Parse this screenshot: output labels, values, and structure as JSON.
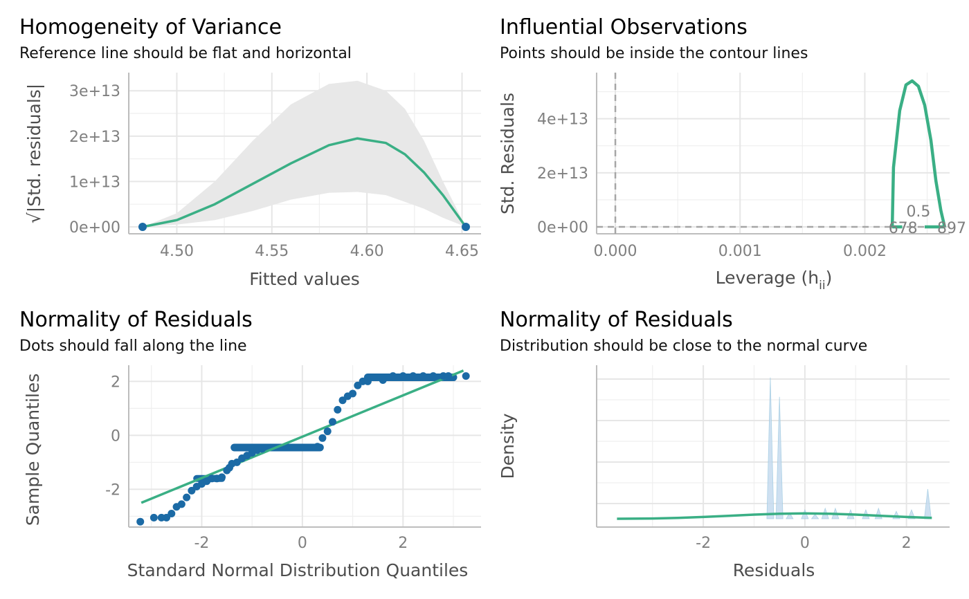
{
  "colors": {
    "green": "#3aaf85",
    "blue": "#1b6aa5",
    "band": "#e8e8e8",
    "density_fill": "#c6dbef"
  },
  "panels": {
    "homogeneity": {
      "title": "Homogeneity of Variance",
      "subtitle": "Reference line should be flat and horizontal",
      "xlabel": "Fitted values",
      "ylabel": "√|Std. residuals|",
      "xticks": [
        "4.50",
        "4.55",
        "4.60",
        "4.65"
      ],
      "yticks": [
        "0e+00",
        "1e+13",
        "2e+13",
        "3e+13"
      ]
    },
    "influential": {
      "title": "Influential Observations",
      "subtitle": "Points should be inside the contour lines",
      "xlabel": "Leverage (h",
      "xlabel_sub": "ii",
      "xlabel_end": ")",
      "ylabel": "Std. Residuals",
      "xticks": [
        "0.000",
        "0.001",
        "0.002"
      ],
      "yticks": [
        "0e+00",
        "2e+13",
        "4e+13"
      ],
      "contour_label": "0.5",
      "point_labels_left": "678",
      "point_labels_right": "897"
    },
    "qq": {
      "title": "Normality of Residuals",
      "subtitle": "Dots should fall along the line",
      "xlabel": "Standard Normal Distribution Quantiles",
      "ylabel": "Sample Quantiles",
      "xticks": [
        "-2",
        "0",
        "2"
      ],
      "yticks": [
        "2",
        "0",
        "-2"
      ]
    },
    "density": {
      "title": "Normality of Residuals",
      "subtitle": "Distribution should be close to the normal curve",
      "xlabel": "Residuals",
      "ylabel": "Density",
      "xticks": [
        "-2",
        "0",
        "2"
      ]
    }
  },
  "chart_data": [
    {
      "type": "line",
      "panel": "homogeneity",
      "x_range": [
        4.482,
        4.652
      ],
      "ylim": [
        0,
        34000000000000.0
      ],
      "points_x": [
        4.482,
        4.652
      ],
      "points_y": [
        0,
        0
      ],
      "fit": {
        "x": [
          4.482,
          4.5,
          4.52,
          4.54,
          4.56,
          4.58,
          4.595,
          4.61,
          4.62,
          4.63,
          4.64,
          4.652
        ],
        "y": [
          0,
          1500000000000.0,
          5000000000000.0,
          9500000000000.0,
          14000000000000.0,
          18000000000000.0,
          19500000000000.0,
          18500000000000.0,
          16000000000000.0,
          12000000000000.0,
          7000000000000.0,
          0
        ]
      },
      "band_upper": [
        0,
        3000000000000.0,
        10000000000000.0,
        19000000000000.0,
        27000000000000.0,
        31500000000000.0,
        32200000000000.0,
        30000000000000.0,
        26000000000000.0,
        19000000000000.0,
        10000000000000.0,
        0
      ],
      "band_lower": [
        0,
        500000000000.0,
        1500000000000.0,
        3500000000000.0,
        6000000000000.0,
        7500000000000.0,
        7700000000000.0,
        7000000000000.0,
        5500000000000.0,
        4000000000000.0,
        2000000000000.0,
        0
      ]
    },
    {
      "type": "line",
      "panel": "influential",
      "x_range": [
        -0.00015,
        0.00268
      ],
      "ylim": [
        0,
        55000000000000.0
      ],
      "contour_x": [
        0.00222,
        0.00223,
        0.00228,
        0.00233,
        0.00238,
        0.00243,
        0.00248,
        0.00253,
        0.00257,
        0.00261,
        0.00264
      ],
      "contour_y": [
        0,
        22000000000000.0,
        43000000000000.0,
        52500000000000.0,
        54000000000000.0,
        52000000000000.0,
        45000000000000.0,
        32000000000000.0,
        17000000000000.0,
        6000000000000.0,
        0
      ],
      "ref_x": 0
    },
    {
      "type": "scatter",
      "panel": "qq",
      "x_range": [
        -3.45,
        3.55
      ],
      "ylim": [
        -3.4,
        2.6
      ],
      "line": {
        "x": [
          -3.2,
          3.2
        ],
        "y": [
          -2.5,
          2.4
        ]
      },
      "points": [
        [
          -3.22,
          -3.2
        ],
        [
          -2.95,
          -3.05
        ],
        [
          -2.8,
          -3.05
        ],
        [
          -2.7,
          -3.05
        ],
        [
          -2.6,
          -2.9
        ],
        [
          -2.5,
          -2.65
        ],
        [
          -2.4,
          -2.55
        ],
        [
          -2.3,
          -2.3
        ],
        [
          -2.2,
          -2.05
        ],
        [
          -2.1,
          -1.9
        ],
        [
          -2.0,
          -1.8
        ],
        [
          -1.9,
          -1.7
        ],
        [
          -1.8,
          -1.6
        ],
        [
          -1.7,
          -1.6
        ],
        [
          -1.6,
          -1.55
        ],
        [
          -1.5,
          -1.3
        ],
        [
          -1.45,
          -1.2
        ],
        [
          -1.4,
          -1.05
        ],
        [
          -1.3,
          -1.0
        ],
        [
          -1.2,
          -0.85
        ],
        [
          -1.1,
          -0.75
        ],
        [
          -1.0,
          -0.65
        ],
        [
          -0.9,
          -0.55
        ],
        [
          -0.8,
          -0.5
        ],
        [
          0.3,
          -0.42
        ],
        [
          0.4,
          -0.1
        ],
        [
          0.5,
          0.15
        ],
        [
          0.6,
          0.5
        ],
        [
          0.7,
          0.95
        ],
        [
          0.8,
          1.3
        ],
        [
          0.9,
          1.45
        ],
        [
          1.0,
          1.55
        ],
        [
          1.1,
          1.85
        ],
        [
          1.2,
          2.0
        ],
        [
          1.3,
          2.0
        ],
        [
          1.6,
          2.05
        ],
        [
          1.8,
          2.2
        ],
        [
          2.0,
          2.2
        ],
        [
          2.2,
          2.2
        ],
        [
          2.4,
          2.2
        ],
        [
          2.6,
          2.2
        ],
        [
          2.8,
          2.2
        ],
        [
          2.9,
          2.2
        ],
        [
          3.25,
          2.2
        ]
      ]
    },
    {
      "type": "area",
      "panel": "density",
      "x_range": [
        -4.1,
        2.85
      ],
      "ylim": [
        0,
        1.0
      ],
      "normal_curve": {
        "x": [
          -3.7,
          -3.0,
          -2.5,
          -2.0,
          -1.5,
          -1.0,
          -0.5,
          0.0,
          0.5,
          1.0,
          1.5,
          2.0,
          2.5
        ],
        "y": [
          0.0,
          0.002,
          0.006,
          0.012,
          0.02,
          0.028,
          0.034,
          0.036,
          0.034,
          0.028,
          0.02,
          0.012,
          0.006
        ]
      },
      "spikes": [
        {
          "x": -0.68,
          "y": 0.95
        },
        {
          "x": -0.5,
          "y": 0.82
        },
        {
          "x": 2.42,
          "y": 0.2
        },
        {
          "x": 0.2,
          "y": 0.03
        },
        {
          "x": 0.4,
          "y": 0.07
        },
        {
          "x": 0.6,
          "y": 0.07
        },
        {
          "x": 0.9,
          "y": 0.06
        },
        {
          "x": 1.2,
          "y": 0.06
        },
        {
          "x": 1.45,
          "y": 0.07
        },
        {
          "x": 1.8,
          "y": 0.05
        },
        {
          "x": 2.1,
          "y": 0.06
        },
        {
          "x": -0.3,
          "y": 0.04
        },
        {
          "x": 0.0,
          "y": 0.06
        }
      ]
    }
  ]
}
